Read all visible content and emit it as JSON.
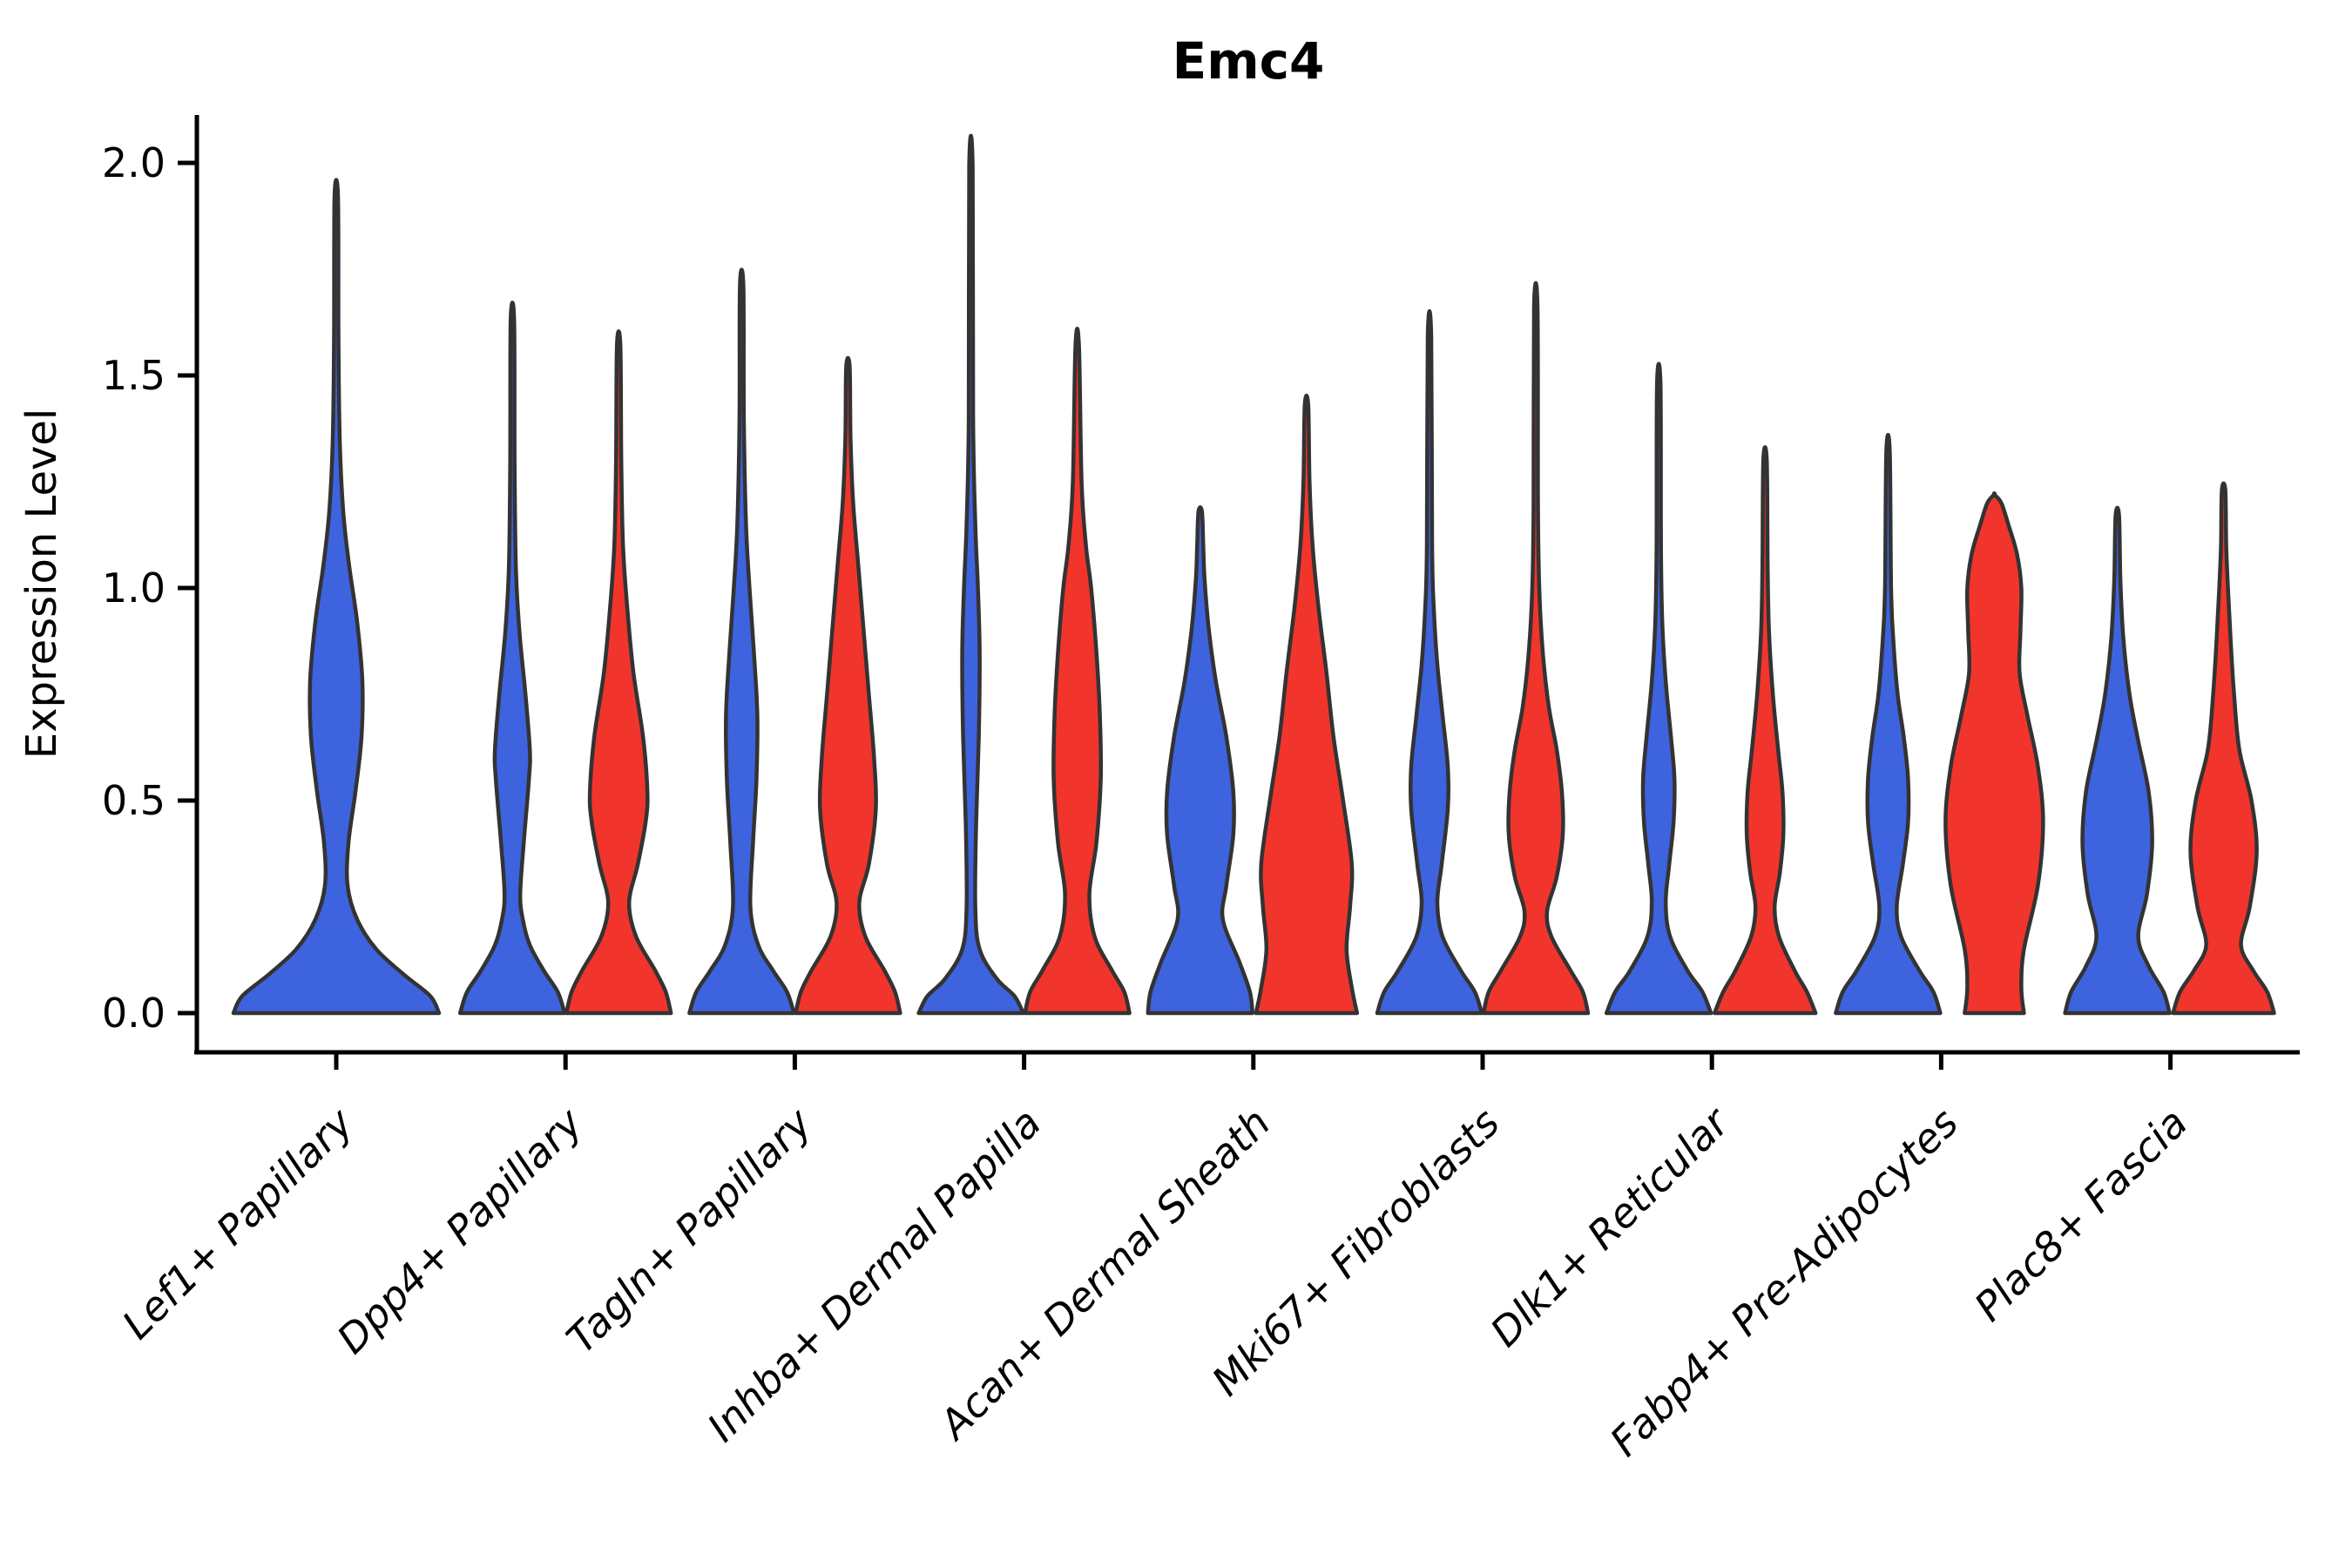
{
  "figure": {
    "title": "Emc4",
    "ylabel": "Expression Level"
  },
  "chart_data": {
    "type": "violin",
    "title": "Emc4",
    "xlabel": "",
    "ylabel": "Expression Level",
    "ylim": [
      0,
      2.05
    ],
    "yticks": [
      0.0,
      0.5,
      1.0,
      1.5,
      2.0
    ],
    "ytick_labels": [
      "0.0",
      "0.5",
      "1.0",
      "1.5",
      "2.0"
    ],
    "grid": "off",
    "legend": "none",
    "categories": [
      "Lef1+ Papillary",
      "Dpp4+ Papillary",
      "Tagln+ Papillary",
      "Inhba+ Dermal Papilla",
      "Acan+ Dermal Sheath",
      "Mki67+ Fibroblasts",
      "Dlk1+ Reticular",
      "Fabp4+ Pre-Adipocytes",
      "Plac8+ Fascia"
    ],
    "series_names": [
      "blue",
      "red"
    ],
    "colors": {
      "blue": "#3E63DF",
      "red": "#F1352C",
      "outline": "#333333",
      "axis": "#000000"
    },
    "max_expression": {
      "Lef1+ Papillary": {
        "blue": 1.92
      },
      "Dpp4+ Papillary": {
        "blue": 1.63,
        "red": 1.57
      },
      "Tagln+ Papillary": {
        "blue": 1.71,
        "red": 1.52
      },
      "Inhba+ Dermal Papilla": {
        "blue": 1.99,
        "red": 1.57
      },
      "Acan+ Dermal Sheath": {
        "blue": 1.18,
        "red": 1.43
      },
      "Mki67+ Fibroblasts": {
        "blue": 1.59,
        "red": 1.66
      },
      "Dlk1+ Reticular": {
        "blue": 1.48,
        "red": 1.3
      },
      "Fabp4+ Pre-Adipocytes": {
        "blue": 1.32,
        "red": 1.22
      },
      "Plac8+ Fascia": {
        "blue": 1.17,
        "red": 1.23
      }
    },
    "violins": [
      {
        "category": 0,
        "series": "blue",
        "max": 1.92,
        "profile": [
          [
            0,
            118
          ],
          [
            0.04,
            108
          ],
          [
            0.09,
            78
          ],
          [
            0.15,
            46
          ],
          [
            0.22,
            24
          ],
          [
            0.3,
            13
          ],
          [
            0.4,
            14
          ],
          [
            0.52,
            22
          ],
          [
            0.65,
            29
          ],
          [
            0.78,
            30
          ],
          [
            0.92,
            24
          ],
          [
            1.05,
            15
          ],
          [
            1.18,
            8
          ],
          [
            1.35,
            4
          ],
          [
            1.6,
            2.5
          ],
          [
            1.92,
            2
          ]
        ]
      },
      {
        "category": 1,
        "series": "blue",
        "max": 1.63,
        "profile": [
          [
            0,
            60
          ],
          [
            0.05,
            52
          ],
          [
            0.1,
            36
          ],
          [
            0.16,
            20
          ],
          [
            0.22,
            12
          ],
          [
            0.28,
            9
          ],
          [
            0.4,
            13
          ],
          [
            0.55,
            19
          ],
          [
            0.62,
            20
          ],
          [
            0.75,
            15
          ],
          [
            0.9,
            8
          ],
          [
            1.05,
            4
          ],
          [
            1.3,
            2.5
          ],
          [
            1.63,
            2
          ]
        ]
      },
      {
        "category": 1,
        "series": "red",
        "max": 1.57,
        "profile": [
          [
            0,
            60
          ],
          [
            0.05,
            54
          ],
          [
            0.1,
            42
          ],
          [
            0.18,
            20
          ],
          [
            0.26,
            12
          ],
          [
            0.35,
            22
          ],
          [
            0.45,
            31
          ],
          [
            0.52,
            33
          ],
          [
            0.65,
            28
          ],
          [
            0.8,
            17
          ],
          [
            0.95,
            10
          ],
          [
            1.1,
            5
          ],
          [
            1.3,
            3
          ],
          [
            1.57,
            2
          ]
        ]
      },
      {
        "category": 2,
        "series": "blue",
        "max": 1.71,
        "profile": [
          [
            0,
            60
          ],
          [
            0.05,
            52
          ],
          [
            0.1,
            36
          ],
          [
            0.16,
            19
          ],
          [
            0.25,
            10
          ],
          [
            0.4,
            13
          ],
          [
            0.55,
            17
          ],
          [
            0.7,
            18
          ],
          [
            0.85,
            14
          ],
          [
            1.0,
            9
          ],
          [
            1.15,
            5
          ],
          [
            1.4,
            2.5
          ],
          [
            1.71,
            2
          ]
        ]
      },
      {
        "category": 2,
        "series": "red",
        "max": 1.52,
        "profile": [
          [
            0,
            60
          ],
          [
            0.05,
            54
          ],
          [
            0.1,
            42
          ],
          [
            0.18,
            20
          ],
          [
            0.26,
            13
          ],
          [
            0.35,
            24
          ],
          [
            0.48,
            32
          ],
          [
            0.6,
            30
          ],
          [
            0.75,
            24
          ],
          [
            0.9,
            18
          ],
          [
            1.05,
            12
          ],
          [
            1.2,
            6
          ],
          [
            1.35,
            3
          ],
          [
            1.52,
            2
          ]
        ]
      },
      {
        "category": 3,
        "series": "blue",
        "max": 1.99,
        "profile": [
          [
            0,
            60
          ],
          [
            0.04,
            50
          ],
          [
            0.08,
            30
          ],
          [
            0.15,
            10
          ],
          [
            0.25,
            5
          ],
          [
            0.45,
            6
          ],
          [
            0.65,
            9
          ],
          [
            0.85,
            10
          ],
          [
            1.0,
            8
          ],
          [
            1.15,
            5
          ],
          [
            1.4,
            2.5
          ],
          [
            1.99,
            2
          ]
        ]
      },
      {
        "category": 3,
        "series": "red",
        "max": 1.57,
        "profile": [
          [
            0,
            60
          ],
          [
            0.05,
            54
          ],
          [
            0.1,
            40
          ],
          [
            0.18,
            20
          ],
          [
            0.28,
            14
          ],
          [
            0.4,
            22
          ],
          [
            0.55,
            27
          ],
          [
            0.7,
            26
          ],
          [
            0.85,
            22
          ],
          [
            1.0,
            16
          ],
          [
            1.1,
            10
          ],
          [
            1.25,
            5
          ],
          [
            1.57,
            2
          ]
        ]
      },
      {
        "category": 4,
        "series": "blue",
        "max": 1.18,
        "profile": [
          [
            0,
            60
          ],
          [
            0.05,
            57
          ],
          [
            0.12,
            45
          ],
          [
            0.22,
            26
          ],
          [
            0.3,
            30
          ],
          [
            0.42,
            38
          ],
          [
            0.52,
            38
          ],
          [
            0.65,
            30
          ],
          [
            0.78,
            18
          ],
          [
            0.9,
            10
          ],
          [
            1.02,
            5
          ],
          [
            1.1,
            3.5
          ],
          [
            1.18,
            2
          ]
        ]
      },
      {
        "category": 4,
        "series": "red",
        "max": 1.43,
        "profile": [
          [
            0,
            58
          ],
          [
            0.06,
            52
          ],
          [
            0.15,
            46
          ],
          [
            0.25,
            50
          ],
          [
            0.35,
            52
          ],
          [
            0.5,
            42
          ],
          [
            0.65,
            31
          ],
          [
            0.8,
            23
          ],
          [
            0.95,
            14
          ],
          [
            1.1,
            7
          ],
          [
            1.25,
            3.5
          ],
          [
            1.43,
            2
          ]
        ]
      },
      {
        "category": 5,
        "series": "blue",
        "max": 1.59,
        "profile": [
          [
            0,
            60
          ],
          [
            0.05,
            52
          ],
          [
            0.1,
            36
          ],
          [
            0.18,
            15
          ],
          [
            0.26,
            9
          ],
          [
            0.35,
            14
          ],
          [
            0.48,
            21
          ],
          [
            0.58,
            21
          ],
          [
            0.7,
            15
          ],
          [
            0.82,
            9
          ],
          [
            0.95,
            5
          ],
          [
            1.1,
            3
          ],
          [
            1.59,
            2
          ]
        ]
      },
      {
        "category": 5,
        "series": "red",
        "max": 1.66,
        "profile": [
          [
            0,
            60
          ],
          [
            0.05,
            54
          ],
          [
            0.1,
            40
          ],
          [
            0.18,
            18
          ],
          [
            0.24,
            13
          ],
          [
            0.32,
            24
          ],
          [
            0.42,
            31
          ],
          [
            0.52,
            30
          ],
          [
            0.62,
            24
          ],
          [
            0.72,
            15
          ],
          [
            0.85,
            8
          ],
          [
            1.0,
            4
          ],
          [
            1.2,
            2.5
          ],
          [
            1.66,
            2
          ]
        ]
      },
      {
        "category": 6,
        "series": "blue",
        "max": 1.48,
        "profile": [
          [
            0,
            60
          ],
          [
            0.05,
            50
          ],
          [
            0.1,
            33
          ],
          [
            0.18,
            13
          ],
          [
            0.26,
            8
          ],
          [
            0.35,
            12
          ],
          [
            0.45,
            17
          ],
          [
            0.55,
            18
          ],
          [
            0.65,
            14
          ],
          [
            0.78,
            8
          ],
          [
            0.92,
            4
          ],
          [
            1.1,
            2.5
          ],
          [
            1.48,
            2
          ]
        ]
      },
      {
        "category": 6,
        "series": "red",
        "max": 1.3,
        "profile": [
          [
            0,
            58
          ],
          [
            0.05,
            48
          ],
          [
            0.1,
            34
          ],
          [
            0.18,
            16
          ],
          [
            0.25,
            11
          ],
          [
            0.33,
            17
          ],
          [
            0.42,
            21
          ],
          [
            0.52,
            20
          ],
          [
            0.62,
            15
          ],
          [
            0.75,
            9
          ],
          [
            0.9,
            4.5
          ],
          [
            1.05,
            3
          ],
          [
            1.3,
            2
          ]
        ]
      },
      {
        "category": 7,
        "series": "blue",
        "max": 1.32,
        "profile": [
          [
            0,
            60
          ],
          [
            0.05,
            52
          ],
          [
            0.1,
            36
          ],
          [
            0.18,
            15
          ],
          [
            0.25,
            10
          ],
          [
            0.35,
            17
          ],
          [
            0.45,
            23
          ],
          [
            0.55,
            23
          ],
          [
            0.65,
            18
          ],
          [
            0.75,
            11
          ],
          [
            0.88,
            6
          ],
          [
            1.0,
            3.5
          ],
          [
            1.32,
            2
          ]
        ]
      },
      {
        "category": 7,
        "series": "red",
        "max": 1.22,
        "profile": [
          [
            0,
            34
          ],
          [
            0.06,
            31
          ],
          [
            0.15,
            34
          ],
          [
            0.3,
            50
          ],
          [
            0.45,
            56
          ],
          [
            0.58,
            50
          ],
          [
            0.7,
            38
          ],
          [
            0.8,
            29
          ],
          [
            0.9,
            30
          ],
          [
            1.0,
            31
          ],
          [
            1.08,
            26
          ],
          [
            1.15,
            16
          ],
          [
            1.2,
            8
          ],
          [
            1.22,
            0
          ]
        ]
      },
      {
        "category": 8,
        "series": "blue",
        "max": 1.17,
        "profile": [
          [
            0,
            60
          ],
          [
            0.05,
            53
          ],
          [
            0.11,
            36
          ],
          [
            0.18,
            24
          ],
          [
            0.28,
            34
          ],
          [
            0.4,
            40
          ],
          [
            0.52,
            36
          ],
          [
            0.64,
            24
          ],
          [
            0.75,
            14
          ],
          [
            0.88,
            7
          ],
          [
            1.02,
            3.5
          ],
          [
            1.17,
            2
          ]
        ]
      },
      {
        "category": 8,
        "series": "red",
        "max": 1.23,
        "profile": [
          [
            0,
            58
          ],
          [
            0.05,
            50
          ],
          [
            0.1,
            34
          ],
          [
            0.16,
            20
          ],
          [
            0.25,
            30
          ],
          [
            0.38,
            38
          ],
          [
            0.5,
            32
          ],
          [
            0.62,
            18
          ],
          [
            0.75,
            12
          ],
          [
            0.88,
            8
          ],
          [
            1.0,
            5
          ],
          [
            1.1,
            3
          ],
          [
            1.23,
            2
          ]
        ]
      }
    ]
  }
}
